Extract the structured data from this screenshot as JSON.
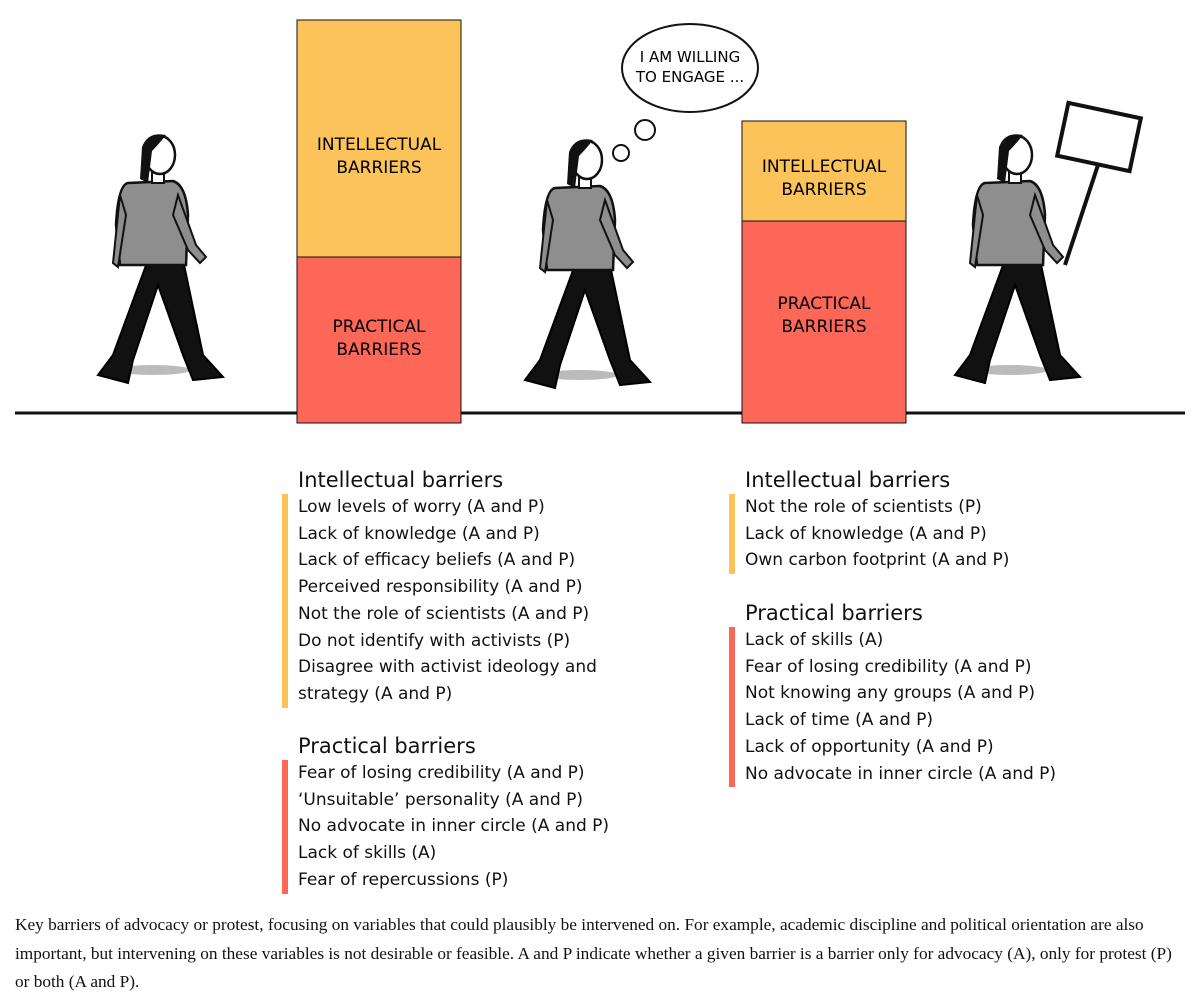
{
  "bubble": {
    "lines": [
      "I AM WILLING",
      "TO ENGAGE ..."
    ]
  },
  "boxes": [
    {
      "intellectual": [
        "INTELLECTUAL",
        "BARRIERS"
      ],
      "practical": [
        "PRACTICAL",
        "BARRIERS"
      ]
    },
    {
      "intellectual": [
        "INTELLECTUAL",
        "BARRIERS"
      ],
      "practical": [
        "PRACTICAL",
        "BARRIERS"
      ]
    }
  ],
  "columns": [
    {
      "sections": [
        {
          "heading": "Intellectual barriers",
          "items": [
            "Low levels of worry (A and P)",
            "Lack of knowledge (A and P)",
            "Lack of efficacy beliefs (A and P)",
            "Perceived responsibility (A and P)",
            "Not the role of scientists (A and P)",
            "Do not identify with activists (P)",
            "Disagree with activist ideology and strategy (A and P)"
          ]
        },
        {
          "heading": "Practical barriers",
          "items": [
            "Fear of losing credibility (A and P)",
            "‘Unsuitable’ personality (A and P)",
            "No advocate in inner circle (A and P)",
            "Lack of skills (A)",
            "Fear of repercussions (P)"
          ]
        }
      ]
    },
    {
      "sections": [
        {
          "heading": "Intellectual barriers",
          "items": [
            "Not the role of scientists (P)",
            "Lack of knowledge (A and P)",
            "Own carbon footprint (A and P)"
          ]
        },
        {
          "heading": "Practical barriers",
          "items": [
            "Lack of skills (A)",
            "Fear of losing credibility (A and P)",
            "Not knowing any groups (A and P)",
            "Lack of time (A and P)",
            "Lack of opportunity (A and P)",
            "No advocate in inner circle (A and P)"
          ]
        }
      ]
    }
  ],
  "caption": "Key barriers of advocacy or protest, focusing on variables that could plausibly be intervened on. For example, academic discipline and political orientation are also important, but intervening on these variables is not desirable or feasible. A and P indicate whether a given barrier is a barrier only for advocacy (A), only for protest (P) or both (A and P)."
}
